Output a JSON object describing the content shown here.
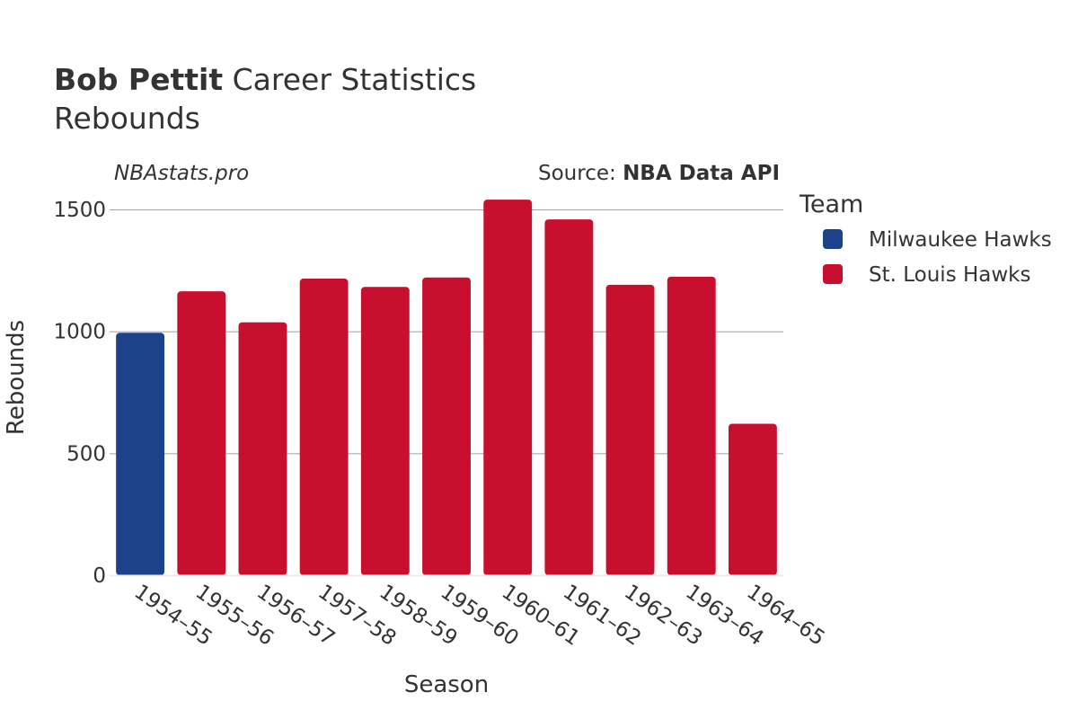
{
  "title": {
    "player": "Bob Pettit",
    "rest": " Career Statistics"
  },
  "subtitle": "Rebounds",
  "watermark": "NBAstats.pro",
  "source": {
    "prefix": "Source: ",
    "name": "NBA Data API"
  },
  "legend": {
    "title": "Team",
    "items": [
      {
        "label": "Milwaukee Hawks",
        "color": "#1c428a"
      },
      {
        "label": "St. Louis Hawks",
        "color": "#c8102e"
      }
    ]
  },
  "chart_data": {
    "type": "bar",
    "xlabel": "Season",
    "ylabel": "Rebounds",
    "ylim": [
      0,
      1650
    ],
    "yticks": [
      0,
      500,
      1000,
      1500
    ],
    "categories": [
      "1954–55",
      "1955–56",
      "1956–57",
      "1957–58",
      "1958–59",
      "1959–60",
      "1960–61",
      "1961–62",
      "1962–63",
      "1963–64",
      "1964–65"
    ],
    "values": [
      994,
      1164,
      1037,
      1216,
      1182,
      1221,
      1540,
      1459,
      1191,
      1224,
      621
    ],
    "teams": [
      "Milwaukee Hawks",
      "St. Louis Hawks",
      "St. Louis Hawks",
      "St. Louis Hawks",
      "St. Louis Hawks",
      "St. Louis Hawks",
      "St. Louis Hawks",
      "St. Louis Hawks",
      "St. Louis Hawks",
      "St. Louis Hawks",
      "St. Louis Hawks"
    ],
    "legend_position": "right",
    "grid": true
  }
}
